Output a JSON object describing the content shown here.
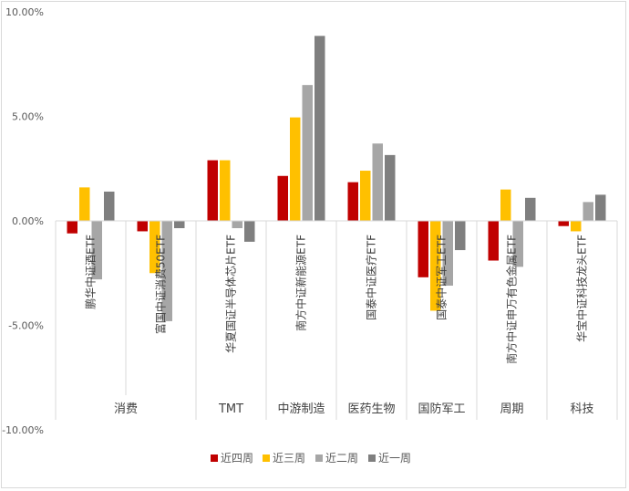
{
  "chart_data": {
    "type": "bar",
    "title": "",
    "xlabel": "",
    "ylabel": "",
    "ylim": [
      -10,
      10
    ],
    "y_ticks": [
      "10.00%",
      "5.00%",
      "0.00%",
      "-5.00%",
      "-10.00%"
    ],
    "y_tick_values": [
      10,
      5,
      0,
      -5,
      -10
    ],
    "categories": [
      "鹏华中证酒ETF",
      "富国中证消费50ETF",
      "华夏国证半导体芯片ETF",
      "南方中证新能源ETF",
      "国泰中证医疗ETF",
      "国泰中证军工ETF",
      "南方中证申万有色金属ETF",
      "华宝中证科技龙头ETF"
    ],
    "groups": [
      {
        "label": "消费",
        "count": 2
      },
      {
        "label": "TMT",
        "count": 1
      },
      {
        "label": "中游制造",
        "count": 1
      },
      {
        "label": "医药生物",
        "count": 1
      },
      {
        "label": "国防军工",
        "count": 1
      },
      {
        "label": "周期",
        "count": 1
      },
      {
        "label": "科技",
        "count": 1
      }
    ],
    "series": [
      {
        "name": "近四周",
        "color": "#c00000",
        "values": [
          -0.6,
          -0.5,
          2.9,
          2.15,
          1.85,
          -2.7,
          -1.9,
          -0.25
        ]
      },
      {
        "name": "近三周",
        "color": "#ffc000",
        "values": [
          1.6,
          -2.5,
          2.9,
          4.95,
          2.4,
          -4.3,
          1.5,
          -0.5
        ]
      },
      {
        "name": "近二周",
        "color": "#a6a6a6",
        "values": [
          -2.8,
          -4.8,
          -0.35,
          6.5,
          3.7,
          -3.1,
          -2.2,
          0.9
        ]
      },
      {
        "name": "近一周",
        "color": "#7f7f7f",
        "values": [
          1.4,
          -0.35,
          -1.0,
          8.85,
          3.15,
          -1.4,
          1.1,
          1.25
        ]
      }
    ],
    "legend_position": "bottom",
    "grid": false
  }
}
